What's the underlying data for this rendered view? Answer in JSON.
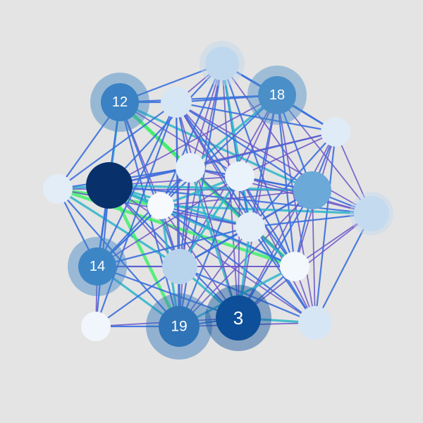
{
  "graph": {
    "background": "#e4e4e4",
    "edge_colors": {
      "strong": "#43ef6c",
      "medium": "#2bb5c9",
      "weak_blue": "#3a6fdd",
      "weak_purple": "#6a55c8"
    },
    "nodes": [
      {
        "id": "n12",
        "label": "12",
        "color": "#3a82c4",
        "halo": true
      },
      {
        "id": "n-top",
        "label": "",
        "color": "#bfd8ee",
        "halo": true
      },
      {
        "id": "n18",
        "label": "18",
        "color": "#4b8fc8",
        "halo": true
      },
      {
        "id": "n-top-left-inner",
        "label": "",
        "color": "#d6e6f4",
        "halo": false
      },
      {
        "id": "n-right-upper",
        "label": "",
        "color": "#dfebf7",
        "halo": false
      },
      {
        "id": "n-left",
        "label": "",
        "color": "#e2edf8",
        "halo": false
      },
      {
        "id": "n-dark",
        "label": "",
        "color": "#08306b",
        "halo": false
      },
      {
        "id": "n-center-a",
        "label": "",
        "color": "#e6f0fa",
        "halo": false
      },
      {
        "id": "n-center-b",
        "label": "",
        "color": "#eaf3fb",
        "halo": false
      },
      {
        "id": "n-center-c",
        "label": "",
        "color": "#f6fafe",
        "halo": false
      },
      {
        "id": "n-mid-right",
        "label": "",
        "color": "#6aa9d8",
        "halo": false
      },
      {
        "id": "n-right",
        "label": "",
        "color": "#c4daef",
        "halo": true
      },
      {
        "id": "n-center-d",
        "label": "",
        "color": "#e4eef9",
        "halo": false
      },
      {
        "id": "n14",
        "label": "14",
        "color": "#3d86c6",
        "halo": true
      },
      {
        "id": "n-lower-mid",
        "label": "",
        "color": "#b8d3ec",
        "halo": false
      },
      {
        "id": "n-lower-right-inner",
        "label": "",
        "color": "#f3f8fd",
        "halo": false
      },
      {
        "id": "n-bottom-left",
        "label": "",
        "color": "#f1f6fc",
        "halo": false
      },
      {
        "id": "n19",
        "label": "19",
        "color": "#2f74b7",
        "halo": true
      },
      {
        "id": "n3",
        "label": "3",
        "color": "#0d4f98",
        "halo": true
      },
      {
        "id": "n-bottom-right",
        "label": "",
        "color": "#d7e6f4",
        "halo": false
      }
    ],
    "edges": [
      {
        "s": "n12",
        "t": "n-top",
        "w": "weak_blue"
      },
      {
        "s": "n12",
        "t": "n18",
        "w": "weak_blue"
      },
      {
        "s": "n12",
        "t": "n-top-left-inner",
        "w": "weak_blue"
      },
      {
        "s": "n12",
        "t": "n-left",
        "w": "weak_blue"
      },
      {
        "s": "n12",
        "t": "n-dark",
        "w": "medium"
      },
      {
        "s": "n12",
        "t": "n-center-a",
        "w": "weak_blue"
      },
      {
        "s": "n12",
        "t": "n-center-b",
        "w": "weak_purple"
      },
      {
        "s": "n12",
        "t": "n-mid-right",
        "w": "medium"
      },
      {
        "s": "n12",
        "t": "n-center-c",
        "w": "weak_purple"
      },
      {
        "s": "n12",
        "t": "n-center-d",
        "w": "strong"
      },
      {
        "s": "n12",
        "t": "n-lower-mid",
        "w": "weak_blue"
      },
      {
        "s": "n12",
        "t": "n-lower-right-inner",
        "w": "strong"
      },
      {
        "s": "n12",
        "t": "n19",
        "w": "weak_blue"
      },
      {
        "s": "n12",
        "t": "n14",
        "w": "weak_blue"
      },
      {
        "s": "n-top",
        "t": "n18",
        "w": "weak_blue"
      },
      {
        "s": "n-top",
        "t": "n-top-left-inner",
        "w": "weak_purple"
      },
      {
        "s": "n-top",
        "t": "n-dark",
        "w": "weak_blue"
      },
      {
        "s": "n-top",
        "t": "n-center-a",
        "w": "weak_purple"
      },
      {
        "s": "n-top",
        "t": "n-center-b",
        "w": "weak_blue"
      },
      {
        "s": "n-top",
        "t": "n-mid-right",
        "w": "weak_purple"
      },
      {
        "s": "n-top",
        "t": "n-right-upper",
        "w": "weak_blue"
      },
      {
        "s": "n-top",
        "t": "n-center-c",
        "w": "weak_blue"
      },
      {
        "s": "n-top",
        "t": "n-center-d",
        "w": "medium"
      },
      {
        "s": "n-top",
        "t": "n-lower-mid",
        "w": "weak_purple"
      },
      {
        "s": "n-top",
        "t": "n19",
        "w": "weak_blue"
      },
      {
        "s": "n-top",
        "t": "n3",
        "w": "weak_purple"
      },
      {
        "s": "n-top",
        "t": "n-lower-right-inner",
        "w": "weak_blue"
      },
      {
        "s": "n18",
        "t": "n-right-upper",
        "w": "weak_blue"
      },
      {
        "s": "n18",
        "t": "n-top-left-inner",
        "w": "weak_blue"
      },
      {
        "s": "n18",
        "t": "n-dark",
        "w": "weak_purple"
      },
      {
        "s": "n18",
        "t": "n-center-a",
        "w": "medium"
      },
      {
        "s": "n18",
        "t": "n-center-b",
        "w": "weak_purple"
      },
      {
        "s": "n18",
        "t": "n-mid-right",
        "w": "weak_blue"
      },
      {
        "s": "n18",
        "t": "n-right",
        "w": "weak_purple"
      },
      {
        "s": "n18",
        "t": "n-center-d",
        "w": "weak_blue"
      },
      {
        "s": "n18",
        "t": "n-lower-mid",
        "w": "weak_purple"
      },
      {
        "s": "n18",
        "t": "n-lower-right-inner",
        "w": "weak_blue"
      },
      {
        "s": "n18",
        "t": "n3",
        "w": "weak_purple"
      },
      {
        "s": "n18",
        "t": "n-bottom-right",
        "w": "weak_purple"
      },
      {
        "s": "n18",
        "t": "n14",
        "w": "weak_blue"
      },
      {
        "s": "n-right-upper",
        "t": "n-right",
        "w": "weak_purple"
      },
      {
        "s": "n-right-upper",
        "t": "n-mid-right",
        "w": "weak_blue"
      },
      {
        "s": "n-right-upper",
        "t": "n-center-b",
        "w": "weak_purple"
      },
      {
        "s": "n-right-upper",
        "t": "n-center-a",
        "w": "weak_blue"
      },
      {
        "s": "n-right-upper",
        "t": "n-dark",
        "w": "weak_purple"
      },
      {
        "s": "n-right-upper",
        "t": "n-center-d",
        "w": "weak_blue"
      },
      {
        "s": "n-right-upper",
        "t": "n-lower-right-inner",
        "w": "weak_purple"
      },
      {
        "s": "n-right-upper",
        "t": "n-bottom-right",
        "w": "weak_blue"
      },
      {
        "s": "n-right-upper",
        "t": "n3",
        "w": "weak_purple"
      },
      {
        "s": "n-right-upper",
        "t": "n-top-left-inner",
        "w": "weak_blue"
      },
      {
        "s": "n-left",
        "t": "n-dark",
        "w": "medium"
      },
      {
        "s": "n-left",
        "t": "n-center-c",
        "w": "strong"
      },
      {
        "s": "n-left",
        "t": "n-center-a",
        "w": "weak_blue"
      },
      {
        "s": "n-left",
        "t": "n-mid-right",
        "w": "weak_purple"
      },
      {
        "s": "n-left",
        "t": "n14",
        "w": "weak_blue"
      },
      {
        "s": "n-left",
        "t": "n-lower-mid",
        "w": "medium"
      },
      {
        "s": "n-left",
        "t": "n19",
        "w": "weak_blue"
      },
      {
        "s": "n-left",
        "t": "n-top-left-inner",
        "w": "weak_blue"
      },
      {
        "s": "n-left",
        "t": "n-lower-right-inner",
        "w": "strong"
      },
      {
        "s": "n-left",
        "t": "n-center-d",
        "w": "weak_purple"
      },
      {
        "s": "n-dark",
        "t": "n-center-c",
        "w": "medium"
      },
      {
        "s": "n-dark",
        "t": "n-center-a",
        "w": "weak_blue"
      },
      {
        "s": "n-dark",
        "t": "n-center-b",
        "w": "weak_purple"
      },
      {
        "s": "n-dark",
        "t": "n-mid-right",
        "w": "medium"
      },
      {
        "s": "n-dark",
        "t": "n-right",
        "w": "weak_blue"
      },
      {
        "s": "n-dark",
        "t": "n-center-d",
        "w": "medium"
      },
      {
        "s": "n-dark",
        "t": "n-lower-mid",
        "w": "weak_purple"
      },
      {
        "s": "n-dark",
        "t": "n14",
        "w": "weak_blue"
      },
      {
        "s": "n-dark",
        "t": "n19",
        "w": "strong"
      },
      {
        "s": "n-dark",
        "t": "n3",
        "w": "weak_blue"
      },
      {
        "s": "n-dark",
        "t": "n-bottom-left",
        "w": "weak_blue"
      },
      {
        "s": "n-dark",
        "t": "n-bottom-right",
        "w": "weak_purple"
      },
      {
        "s": "n-dark",
        "t": "n-lower-right-inner",
        "w": "medium"
      },
      {
        "s": "n-center-c",
        "t": "n-center-a",
        "w": "weak_blue"
      },
      {
        "s": "n-center-c",
        "t": "n-center-b",
        "w": "medium"
      },
      {
        "s": "n-center-c",
        "t": "n-mid-right",
        "w": "weak_purple"
      },
      {
        "s": "n-center-c",
        "t": "n-right",
        "w": "medium"
      },
      {
        "s": "n-center-c",
        "t": "n-center-d",
        "w": "weak_blue"
      },
      {
        "s": "n-center-c",
        "t": "n-lower-mid",
        "w": "weak_purple"
      },
      {
        "s": "n-center-c",
        "t": "n14",
        "w": "weak_blue"
      },
      {
        "s": "n-center-c",
        "t": "n19",
        "w": "medium"
      },
      {
        "s": "n-center-c",
        "t": "n3",
        "w": "weak_purple"
      },
      {
        "s": "n-center-c",
        "t": "n-lower-right-inner",
        "w": "weak_blue"
      },
      {
        "s": "n-center-c",
        "t": "n-bottom-right",
        "w": "weak_blue"
      },
      {
        "s": "n-center-a",
        "t": "n-center-b",
        "w": "weak_purple"
      },
      {
        "s": "n-center-a",
        "t": "n-mid-right",
        "w": "weak_blue"
      },
      {
        "s": "n-center-a",
        "t": "n-right",
        "w": "weak_purple"
      },
      {
        "s": "n-center-a",
        "t": "n-center-d",
        "w": "medium"
      },
      {
        "s": "n-center-a",
        "t": "n-lower-mid",
        "w": "weak_blue"
      },
      {
        "s": "n-center-a",
        "t": "n19",
        "w": "weak_purple"
      },
      {
        "s": "n-center-a",
        "t": "n3",
        "w": "medium"
      },
      {
        "s": "n-center-a",
        "t": "n-lower-right-inner",
        "w": "weak_purple"
      },
      {
        "s": "n-center-a",
        "t": "n14",
        "w": "weak_blue"
      },
      {
        "s": "n-center-b",
        "t": "n-mid-right",
        "w": "weak_blue"
      },
      {
        "s": "n-center-b",
        "t": "n-right",
        "w": "weak_purple"
      },
      {
        "s": "n-center-b",
        "t": "n-center-d",
        "w": "weak_blue"
      },
      {
        "s": "n-center-b",
        "t": "n-lower-mid",
        "w": "medium"
      },
      {
        "s": "n-center-b",
        "t": "n19",
        "w": "weak_blue"
      },
      {
        "s": "n-center-b",
        "t": "n3",
        "w": "weak_purple"
      },
      {
        "s": "n-center-b",
        "t": "n-lower-right-inner",
        "w": "weak_blue"
      },
      {
        "s": "n-center-b",
        "t": "n-bottom-right",
        "w": "weak_purple"
      },
      {
        "s": "n-center-b",
        "t": "n14",
        "w": "weak_purple"
      },
      {
        "s": "n-mid-right",
        "t": "n-right",
        "w": "weak_blue"
      },
      {
        "s": "n-mid-right",
        "t": "n-center-d",
        "w": "weak_purple"
      },
      {
        "s": "n-mid-right",
        "t": "n-lower-right-inner",
        "w": "weak_blue"
      },
      {
        "s": "n-mid-right",
        "t": "n-bottom-right",
        "w": "weak_purple"
      },
      {
        "s": "n-mid-right",
        "t": "n3",
        "w": "weak_blue"
      },
      {
        "s": "n-mid-right",
        "t": "n19",
        "w": "weak_purple"
      },
      {
        "s": "n-mid-right",
        "t": "n-lower-mid",
        "w": "weak_blue"
      },
      {
        "s": "n-right",
        "t": "n-lower-right-inner",
        "w": "weak_purple"
      },
      {
        "s": "n-right",
        "t": "n-bottom-right",
        "w": "weak_blue"
      },
      {
        "s": "n-right",
        "t": "n3",
        "w": "weak_purple"
      },
      {
        "s": "n-right",
        "t": "n-center-d",
        "w": "weak_blue"
      },
      {
        "s": "n-right",
        "t": "n-top-left-inner",
        "w": "weak_purple"
      },
      {
        "s": "n-center-d",
        "t": "n-lower-right-inner",
        "w": "medium"
      },
      {
        "s": "n-center-d",
        "t": "n-lower-mid",
        "w": "weak_blue"
      },
      {
        "s": "n-center-d",
        "t": "n3",
        "w": "medium"
      },
      {
        "s": "n-center-d",
        "t": "n19",
        "w": "weak_purple"
      },
      {
        "s": "n-center-d",
        "t": "n14",
        "w": "weak_blue"
      },
      {
        "s": "n-center-d",
        "t": "n-bottom-right",
        "w": "weak_blue"
      },
      {
        "s": "n14",
        "t": "n-lower-mid",
        "w": "weak_blue"
      },
      {
        "s": "n14",
        "t": "n19",
        "w": "medium"
      },
      {
        "s": "n14",
        "t": "n-bottom-left",
        "w": "weak_purple"
      },
      {
        "s": "n14",
        "t": "n3",
        "w": "weak_blue"
      },
      {
        "s": "n14",
        "t": "n-lower-right-inner",
        "w": "weak_purple"
      },
      {
        "s": "n14",
        "t": "n-top-left-inner",
        "w": "weak_blue"
      },
      {
        "s": "n-lower-mid",
        "t": "n19",
        "w": "weak_blue"
      },
      {
        "s": "n-lower-mid",
        "t": "n3",
        "w": "medium"
      },
      {
        "s": "n-lower-mid",
        "t": "n-lower-right-inner",
        "w": "weak_purple"
      },
      {
        "s": "n-lower-mid",
        "t": "n-bottom-right",
        "w": "weak_blue"
      },
      {
        "s": "n-lower-mid",
        "t": "n-bottom-left",
        "w": "weak_blue"
      },
      {
        "s": "n-lower-mid",
        "t": "n-top-left-inner",
        "w": "weak_purple"
      },
      {
        "s": "n-lower-right-inner",
        "t": "n3",
        "w": "weak_blue"
      },
      {
        "s": "n-lower-right-inner",
        "t": "n19",
        "w": "medium"
      },
      {
        "s": "n-lower-right-inner",
        "t": "n-bottom-right",
        "w": "weak_purple"
      },
      {
        "s": "n-lower-right-inner",
        "t": "n-top-left-inner",
        "w": "weak_blue"
      },
      {
        "s": "n-bottom-left",
        "t": "n19",
        "w": "weak_blue"
      },
      {
        "s": "n-bottom-left",
        "t": "n3",
        "w": "weak_purple"
      },
      {
        "s": "n-bottom-left",
        "t": "n-top-left-inner",
        "w": "weak_blue"
      },
      {
        "s": "n19",
        "t": "n3",
        "w": "weak_blue"
      },
      {
        "s": "n19",
        "t": "n-bottom-right",
        "w": "weak_purple"
      },
      {
        "s": "n19",
        "t": "n-top-left-inner",
        "w": "weak_blue"
      },
      {
        "s": "n3",
        "t": "n-bottom-right",
        "w": "medium"
      },
      {
        "s": "n3",
        "t": "n-top-left-inner",
        "w": "weak_purple"
      },
      {
        "s": "n-bottom-right",
        "t": "n-top-left-inner",
        "w": "weak_blue"
      },
      {
        "s": "n-top-left-inner",
        "t": "n-center-a",
        "w": "weak_blue"
      },
      {
        "s": "n-top-left-inner",
        "t": "n-center-b",
        "w": "weak_purple"
      },
      {
        "s": "n-top-left-inner",
        "t": "n-mid-right",
        "w": "weak_blue"
      },
      {
        "s": "n-top-left-inner",
        "t": "n-center-d",
        "w": "weak_purple"
      }
    ]
  }
}
